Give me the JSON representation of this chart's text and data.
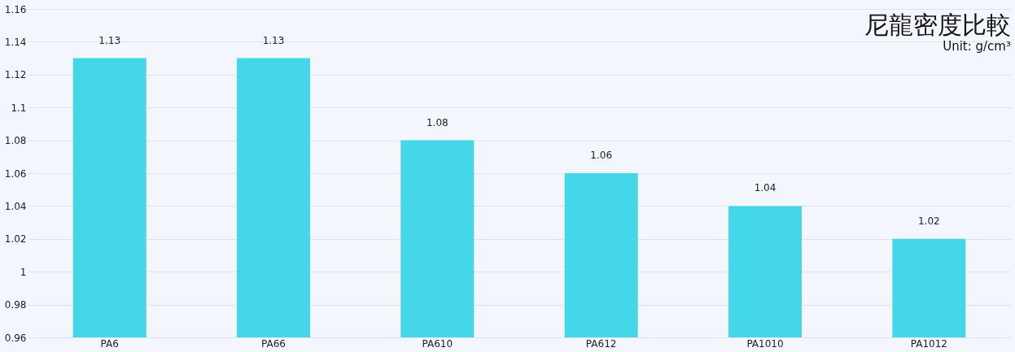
{
  "chart_data": {
    "type": "bar",
    "title": "尼龍密度比較",
    "subtitle": "Unit: g/cm³",
    "categories": [
      "PA6",
      "PA66",
      "PA610",
      "PA612",
      "PA1010",
      "PA1012"
    ],
    "values": [
      1.13,
      1.13,
      1.08,
      1.06,
      1.04,
      1.02
    ],
    "color": "#44d7e9",
    "ylim": [
      0.96,
      1.16
    ],
    "yticks": [
      0.96,
      0.98,
      1,
      1.02,
      1.04,
      1.06,
      1.08,
      1.1,
      1.12,
      1.14,
      1.16
    ],
    "grid": "y",
    "data_labels": true
  }
}
